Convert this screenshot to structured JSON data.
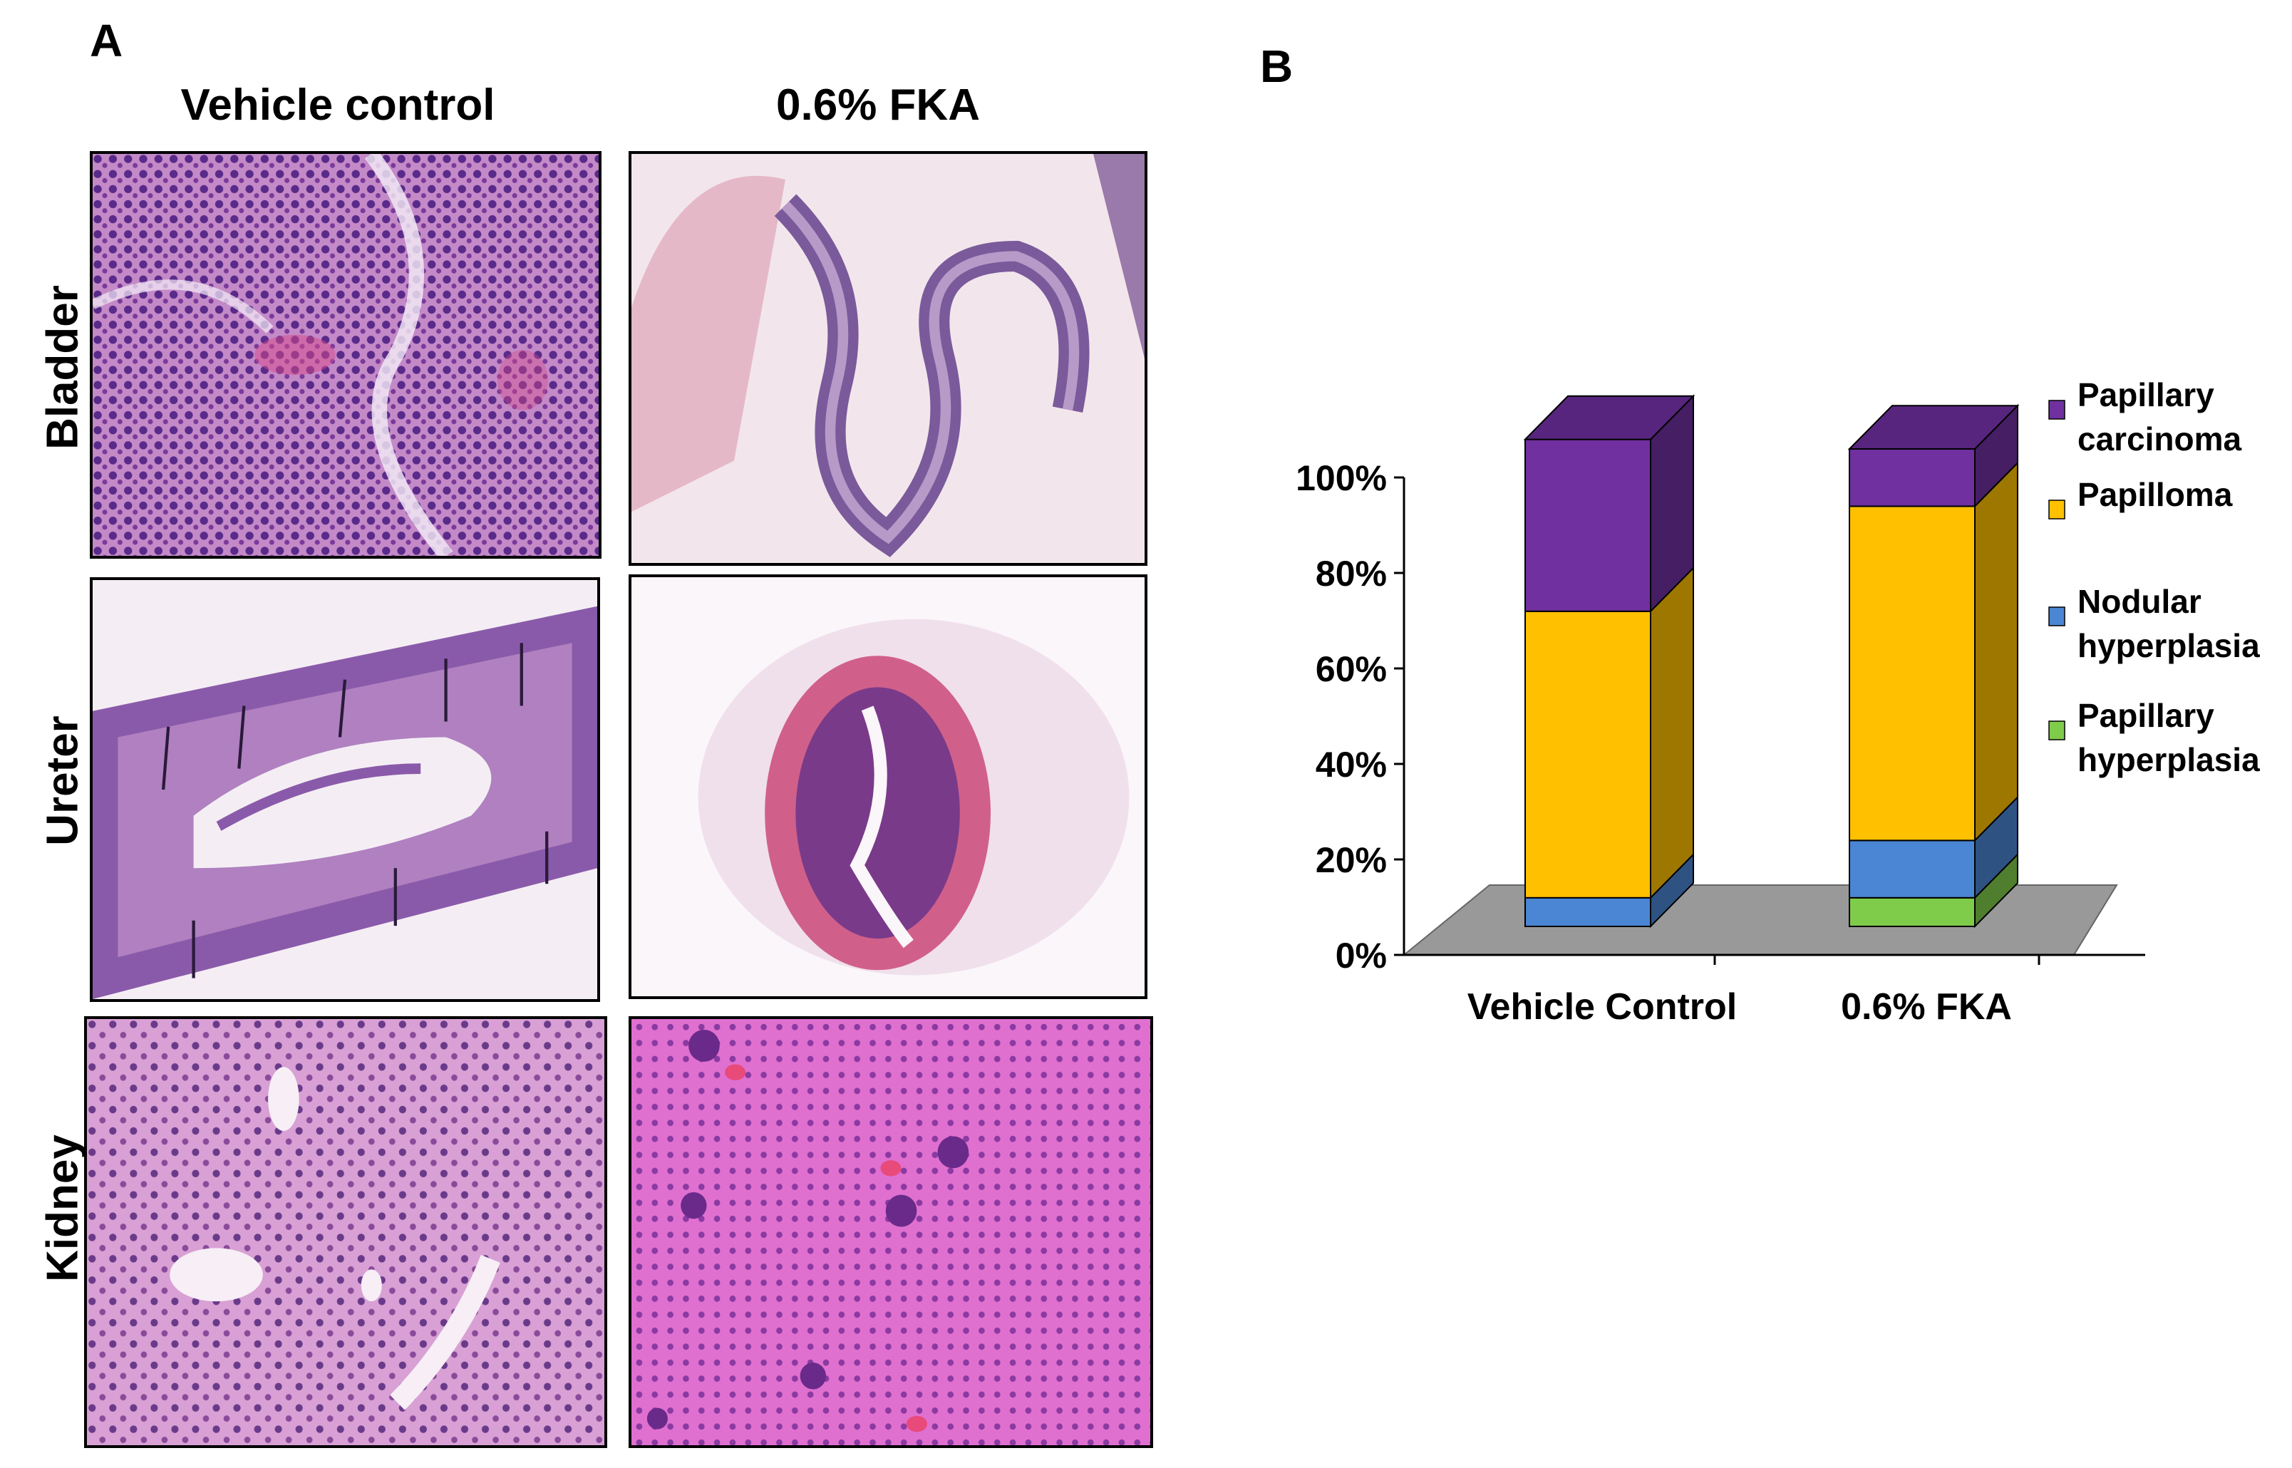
{
  "panel_a": {
    "letter": "A",
    "columns": [
      "Vehicle control",
      "0.6% FKA"
    ],
    "rows": [
      "Bladder",
      "Ureter",
      "Kidney"
    ]
  },
  "panel_b": {
    "letter": "B"
  },
  "colors": {
    "papillary_carcinoma": "#7030A0",
    "papilloma": "#FFC000",
    "nodular_hyperplasia": "#4A86D4",
    "papillary_hyperplasia": "#7FCC4A",
    "floor": "#999999"
  },
  "chart_data": {
    "type": "bar",
    "stacked": true,
    "three_d": true,
    "categories": [
      "Vehicle Control",
      "0.6%  FKA"
    ],
    "series": [
      {
        "name": "Papillary hyperplasia",
        "values": [
          0,
          6
        ]
      },
      {
        "name": "Nodular hyperplasia",
        "values": [
          6,
          12
        ]
      },
      {
        "name": "Papilloma",
        "values": [
          60,
          70
        ]
      },
      {
        "name": "Papillary carcinoma",
        "values": [
          36,
          12
        ]
      }
    ],
    "legend": [
      "Papillary carcinoma",
      "Papilloma",
      "Nodular hyperplasia",
      "Papillary hyperplasia"
    ],
    "yticks": [
      "0%",
      "20%",
      "40%",
      "60%",
      "80%",
      "100%"
    ],
    "ylim": [
      0,
      100
    ],
    "legend_position": "right"
  }
}
